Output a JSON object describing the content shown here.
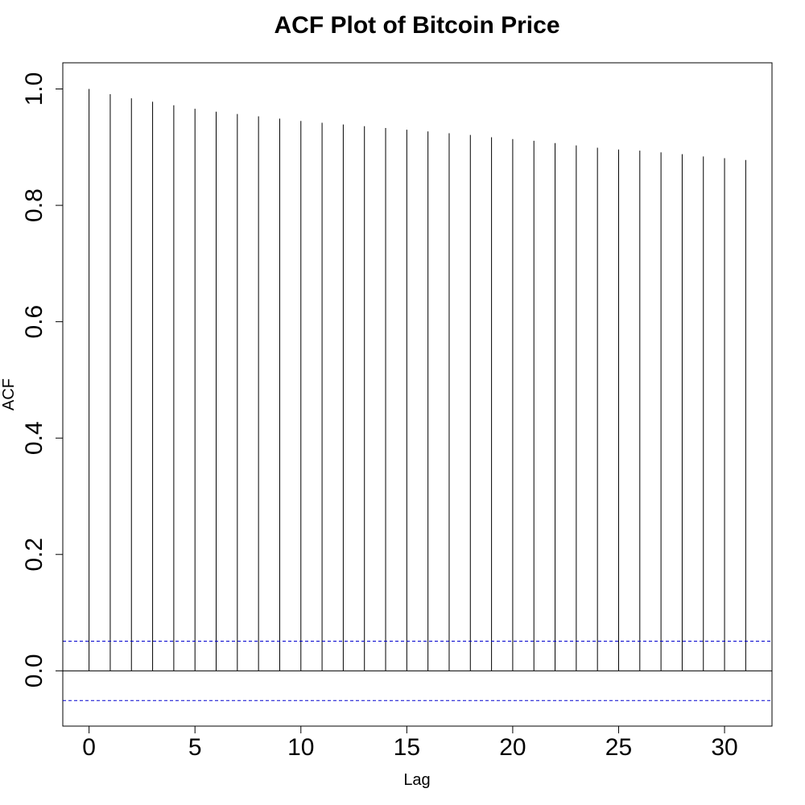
{
  "chart_data": {
    "type": "bar",
    "title": "ACF Plot of Bitcoin Price",
    "xlabel": "Lag",
    "ylabel": "ACF",
    "x": [
      0,
      1,
      2,
      3,
      4,
      5,
      6,
      7,
      8,
      9,
      10,
      11,
      12,
      13,
      14,
      15,
      16,
      17,
      18,
      19,
      20,
      21,
      22,
      23,
      24,
      25,
      26,
      27,
      28,
      29,
      30,
      31
    ],
    "values": [
      1.0,
      0.991,
      0.984,
      0.978,
      0.972,
      0.966,
      0.961,
      0.957,
      0.953,
      0.949,
      0.945,
      0.942,
      0.939,
      0.936,
      0.933,
      0.93,
      0.927,
      0.924,
      0.921,
      0.917,
      0.914,
      0.911,
      0.907,
      0.903,
      0.899,
      0.896,
      0.894,
      0.891,
      0.888,
      0.884,
      0.881,
      0.878
    ],
    "confidence_bounds": [
      0.051,
      -0.051
    ],
    "confidence_color": "#0000cd",
    "bar_color": "#000000",
    "x_ticks": [
      "0",
      "5",
      "10",
      "15",
      "20",
      "25",
      "30"
    ],
    "y_ticks": [
      "0.0",
      "0.2",
      "0.4",
      "0.6",
      "0.8",
      "1.0"
    ],
    "xlim": [
      -1.24,
      32.24
    ],
    "ylim": [
      -0.095,
      1.045
    ],
    "grid": false,
    "legend": "none"
  }
}
